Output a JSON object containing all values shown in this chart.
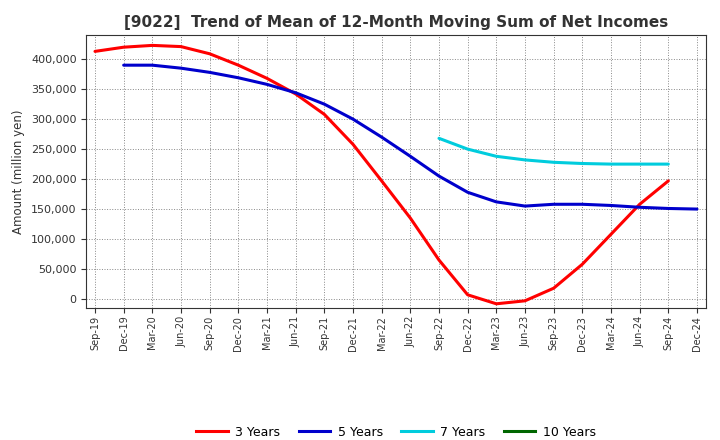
{
  "title": "[9022]  Trend of Mean of 12-Month Moving Sum of Net Incomes",
  "ylabel": "Amount (million yen)",
  "background_color": "#ffffff",
  "grid_color": "#888888",
  "ylim": [
    -15000,
    440000
  ],
  "yticks": [
    0,
    50000,
    100000,
    150000,
    200000,
    250000,
    300000,
    350000,
    400000
  ],
  "x_labels": [
    "Sep-19",
    "Dec-19",
    "Mar-20",
    "Jun-20",
    "Sep-20",
    "Dec-20",
    "Mar-21",
    "Jun-21",
    "Sep-21",
    "Dec-21",
    "Mar-22",
    "Jun-22",
    "Sep-22",
    "Dec-22",
    "Mar-23",
    "Jun-23",
    "Sep-23",
    "Dec-23",
    "Mar-24",
    "Jun-24",
    "Sep-24",
    "Dec-24"
  ],
  "series": {
    "3 Years": {
      "color": "#ff0000",
      "data": [
        413000,
        420000,
        423000,
        421000,
        409000,
        390000,
        368000,
        342000,
        308000,
        258000,
        197000,
        135000,
        65000,
        7000,
        -8000,
        -3000,
        18000,
        58000,
        108000,
        158000,
        197000,
        null
      ]
    },
    "5 Years": {
      "color": "#0000cc",
      "data": [
        null,
        390000,
        390000,
        385000,
        378000,
        369000,
        358000,
        344000,
        325000,
        300000,
        270000,
        238000,
        205000,
        178000,
        162000,
        155000,
        158000,
        158000,
        156000,
        153000,
        151000,
        150000
      ]
    },
    "7 Years": {
      "color": "#00ccdd",
      "data": [
        null,
        null,
        null,
        null,
        null,
        null,
        null,
        null,
        null,
        null,
        null,
        null,
        268000,
        250000,
        238000,
        232000,
        228000,
        226000,
        225000,
        225000,
        225000,
        null
      ]
    },
    "10 Years": {
      "color": "#006600",
      "data": [
        null,
        null,
        null,
        null,
        null,
        null,
        null,
        null,
        null,
        null,
        null,
        null,
        null,
        null,
        null,
        null,
        null,
        null,
        null,
        null,
        null,
        null
      ]
    }
  },
  "legend": {
    "entries": [
      "3 Years",
      "5 Years",
      "7 Years",
      "10 Years"
    ],
    "colors": [
      "#ff0000",
      "#0000cc",
      "#00ccdd",
      "#006600"
    ]
  }
}
